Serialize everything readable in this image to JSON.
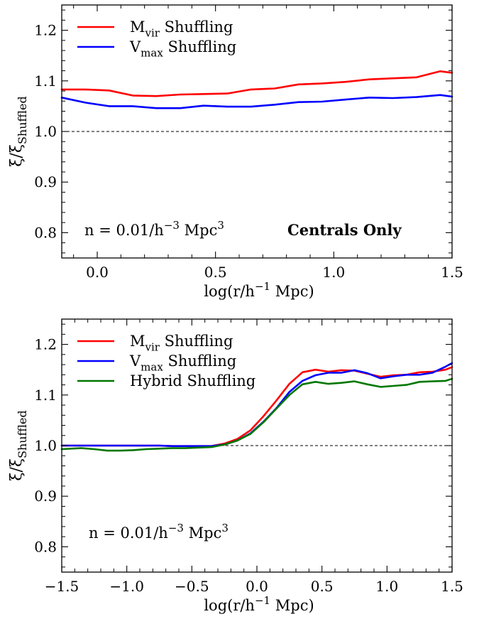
{
  "chart_data": [
    {
      "type": "line",
      "xlabel": "log(r/h⁻¹ Mpc)",
      "ylabel": "ξ/ξ_Shuffled",
      "xlim": [
        -0.15,
        1.5
      ],
      "ylim": [
        0.75,
        1.25
      ],
      "xticks": [
        0.0,
        0.5,
        1.0,
        1.5
      ],
      "xtick_labels": [
        "0.0",
        "0.5",
        "1.0",
        "1.5"
      ],
      "yticks": [
        0.8,
        0.9,
        1.0,
        1.1,
        1.2
      ],
      "ytick_labels": [
        "0.8",
        "0.9",
        "1.0",
        "1.1",
        "1.2"
      ],
      "reference_line": 1.0,
      "annotation": "n = 0.01/h⁻³ Mpc³",
      "annotation_bold": "Centrals Only",
      "legend_position": "top-left",
      "x": [
        -0.15,
        -0.05,
        0.05,
        0.15,
        0.25,
        0.35,
        0.45,
        0.55,
        0.65,
        0.75,
        0.85,
        0.95,
        1.05,
        1.15,
        1.25,
        1.35,
        1.45,
        1.5
      ],
      "series": [
        {
          "name": "M_vir Shuffling",
          "color": "#ff0000",
          "values": [
            1.083,
            1.083,
            1.081,
            1.071,
            1.07,
            1.073,
            1.074,
            1.075,
            1.083,
            1.085,
            1.093,
            1.095,
            1.098,
            1.103,
            1.105,
            1.107,
            1.119,
            1.116
          ]
        },
        {
          "name": "V_max Shuffling",
          "color": "#0000ff",
          "values": [
            1.067,
            1.057,
            1.05,
            1.05,
            1.046,
            1.046,
            1.051,
            1.049,
            1.049,
            1.053,
            1.058,
            1.059,
            1.063,
            1.067,
            1.066,
            1.068,
            1.072,
            1.069
          ]
        }
      ]
    },
    {
      "type": "line",
      "xlabel": "log(r/h⁻¹ Mpc)",
      "ylabel": "ξ/ξ_Shuffled",
      "xlim": [
        -1.5,
        1.5
      ],
      "ylim": [
        0.75,
        1.25
      ],
      "xticks": [
        -1.5,
        -1.0,
        -0.5,
        0.0,
        0.5,
        1.0,
        1.5
      ],
      "xtick_labels": [
        "−1.5",
        "−1.0",
        "−0.5",
        "0.0",
        "0.5",
        "1.0",
        "1.5"
      ],
      "yticks": [
        0.8,
        0.9,
        1.0,
        1.1,
        1.2
      ],
      "ytick_labels": [
        "0.8",
        "0.9",
        "1.0",
        "1.1",
        "1.2"
      ],
      "reference_line": 1.0,
      "annotation": "n = 0.01/h⁻³ Mpc³",
      "legend_position": "top-left",
      "x": [
        -1.5,
        -1.35,
        -1.25,
        -1.15,
        -1.05,
        -0.95,
        -0.85,
        -0.75,
        -0.65,
        -0.55,
        -0.45,
        -0.35,
        -0.25,
        -0.15,
        -0.05,
        0.05,
        0.15,
        0.25,
        0.35,
        0.45,
        0.55,
        0.65,
        0.75,
        0.85,
        0.95,
        1.05,
        1.15,
        1.25,
        1.35,
        1.45,
        1.5
      ],
      "series": [
        {
          "name": "M_vir Shuffling",
          "color": "#ff0000",
          "values": [
            1.0,
            1.0,
            1.0,
            1.0,
            1.0,
            1.0,
            1.0,
            1.0,
            0.999,
            0.999,
            0.999,
            0.999,
            1.004,
            1.013,
            1.03,
            1.058,
            1.089,
            1.122,
            1.145,
            1.15,
            1.146,
            1.149,
            1.148,
            1.142,
            1.136,
            1.139,
            1.14,
            1.145,
            1.146,
            1.15,
            1.155
          ]
        },
        {
          "name": "V_max Shuffling",
          "color": "#0000ff",
          "values": [
            1.0,
            1.0,
            1.0,
            1.0,
            1.0,
            1.0,
            1.0,
            1.0,
            0.999,
            0.999,
            0.999,
            0.999,
            1.002,
            1.01,
            1.024,
            1.047,
            1.074,
            1.106,
            1.128,
            1.139,
            1.144,
            1.144,
            1.149,
            1.143,
            1.133,
            1.137,
            1.14,
            1.14,
            1.144,
            1.156,
            1.163
          ]
        },
        {
          "name": "Hybrid Shuffling",
          "color": "#007700",
          "values": [
            0.993,
            0.995,
            0.993,
            0.99,
            0.99,
            0.991,
            0.993,
            0.994,
            0.995,
            0.995,
            0.996,
            0.997,
            1.002,
            1.01,
            1.023,
            1.046,
            1.073,
            1.1,
            1.121,
            1.126,
            1.122,
            1.124,
            1.127,
            1.121,
            1.116,
            1.118,
            1.12,
            1.126,
            1.127,
            1.128,
            1.132
          ]
        }
      ]
    }
  ]
}
